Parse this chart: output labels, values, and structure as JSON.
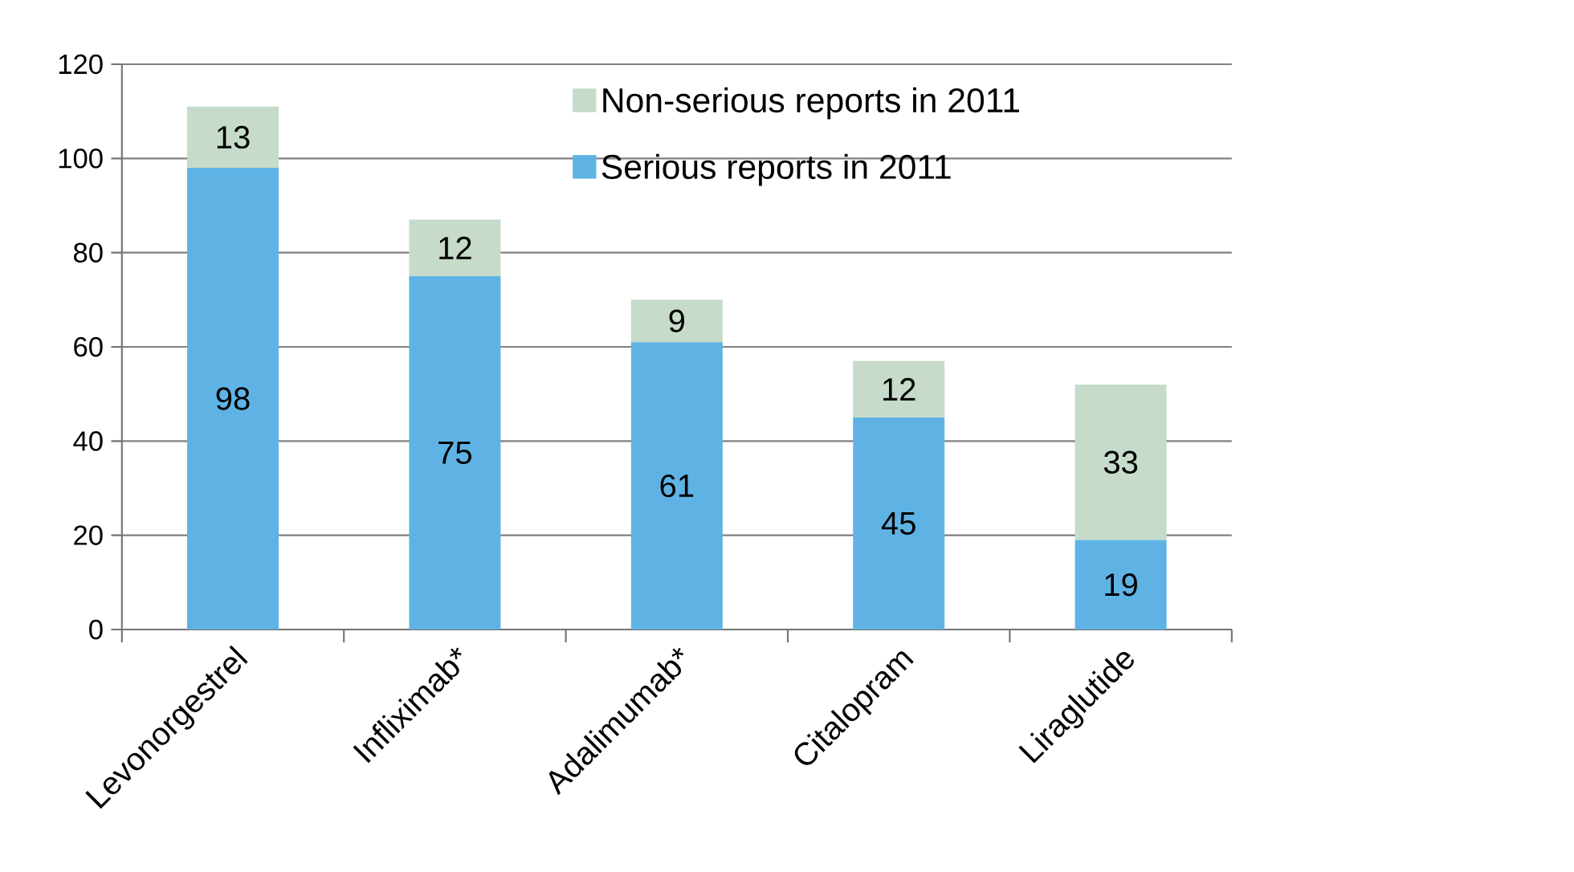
{
  "chart_data": {
    "type": "bar",
    "stacked": true,
    "categories": [
      "Levonorgestrel",
      "Infliximab*",
      "Adalimumab*",
      "Citalopram",
      "Liraglutide"
    ],
    "series": [
      {
        "name": "Serious reports in 2011",
        "color": "#5eb3e4",
        "values": [
          98,
          75,
          61,
          45,
          19
        ]
      },
      {
        "name": "Non-serious reports in 2011",
        "color": "#c6dbca",
        "values": [
          13,
          12,
          9,
          12,
          33
        ]
      }
    ],
    "ylim": [
      0,
      120
    ],
    "yticks": [
      0,
      20,
      40,
      60,
      80,
      100,
      120
    ],
    "grid": "y",
    "legend": "top",
    "data_labels": true
  }
}
